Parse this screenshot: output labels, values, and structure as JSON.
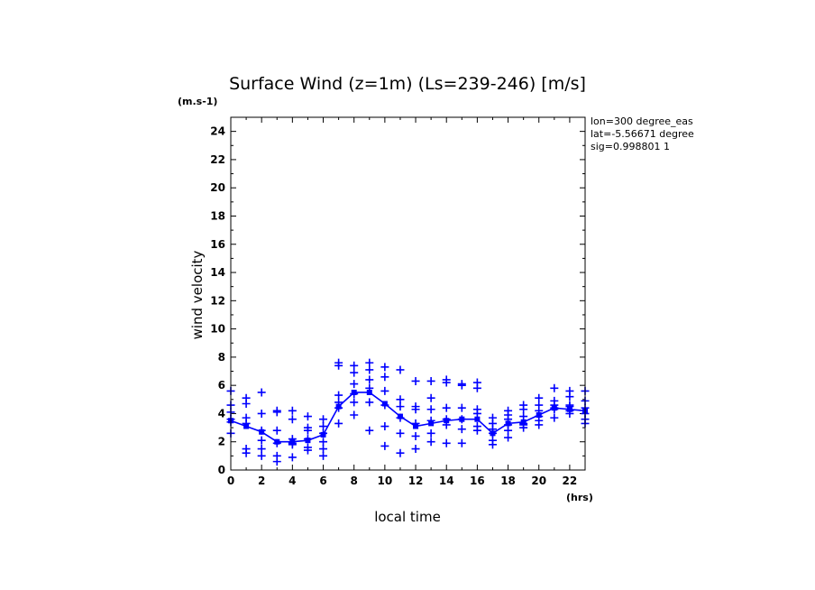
{
  "chart_data": {
    "type": "scatter",
    "title": "Surface Wind (z=1m) (Ls=239-246) [m/s]",
    "ylabel": "wind velocity",
    "yunit": "(m.s-1)",
    "xlabel": "local time",
    "xunit": "(hrs)",
    "info": [
      "lon=300 degree_eas",
      "lat=-5.56671 degree",
      "sig=0.998801 1"
    ],
    "xlim": [
      0,
      23
    ],
    "ylim": [
      0,
      25
    ],
    "xticks": [
      0,
      2,
      4,
      6,
      8,
      10,
      12,
      14,
      16,
      18,
      20,
      22
    ],
    "yticks": [
      0,
      2,
      4,
      6,
      8,
      10,
      12,
      14,
      16,
      18,
      20,
      22,
      24
    ],
    "color": "#0000ff",
    "mean_line": {
      "x": [
        0,
        1,
        2,
        3,
        4,
        5,
        6,
        7,
        8,
        9,
        10,
        11,
        12,
        13,
        14,
        15,
        16,
        17,
        18,
        19,
        20,
        21,
        22,
        23
      ],
      "y": [
        3.5,
        3.1,
        2.7,
        2.0,
        2.0,
        2.1,
        2.5,
        4.5,
        5.5,
        5.5,
        4.7,
        3.8,
        3.1,
        3.3,
        3.5,
        3.6,
        3.6,
        2.6,
        3.3,
        3.4,
        3.9,
        4.4,
        4.3,
        4.2
      ]
    },
    "samples": [
      {
        "x": 0,
        "y": [
          5.6,
          4.6,
          4.1,
          3.6,
          2.6,
          3.4
        ]
      },
      {
        "x": 1,
        "y": [
          5.1,
          4.7,
          3.7,
          3.3,
          1.5,
          1.2
        ]
      },
      {
        "x": 2,
        "y": [
          5.5,
          4.0,
          2.8,
          2.1,
          1.5,
          1.0
        ]
      },
      {
        "x": 3,
        "y": [
          4.2,
          4.1,
          2.8,
          1.9,
          1.0,
          0.6
        ]
      },
      {
        "x": 4,
        "y": [
          4.2,
          3.6,
          2.2,
          1.9,
          1.8,
          0.9
        ]
      },
      {
        "x": 5,
        "y": [
          3.8,
          3.0,
          2.2,
          1.6,
          2.8,
          1.4
        ]
      },
      {
        "x": 6,
        "y": [
          3.6,
          3.1,
          2.6,
          2.0,
          1.5,
          1.0
        ]
      },
      {
        "x": 7,
        "y": [
          7.6,
          7.4,
          5.3,
          4.8,
          4.4,
          3.3
        ]
      },
      {
        "x": 8,
        "y": [
          7.4,
          6.9,
          6.1,
          5.4,
          4.8,
          3.9
        ]
      },
      {
        "x": 9,
        "y": [
          7.6,
          7.1,
          6.4,
          5.8,
          4.8,
          2.8
        ]
      },
      {
        "x": 10,
        "y": [
          7.3,
          6.6,
          5.6,
          4.6,
          3.1,
          1.7
        ]
      },
      {
        "x": 11,
        "y": [
          7.1,
          5.0,
          4.5,
          3.7,
          2.6,
          1.2
        ]
      },
      {
        "x": 12,
        "y": [
          6.3,
          4.5,
          4.3,
          3.3,
          2.4,
          1.5
        ]
      },
      {
        "x": 13,
        "y": [
          6.3,
          5.1,
          4.3,
          3.5,
          2.6,
          2.0
        ]
      },
      {
        "x": 14,
        "y": [
          6.4,
          6.2,
          4.4,
          3.6,
          3.2,
          1.9
        ]
      },
      {
        "x": 15,
        "y": [
          6.1,
          6.0,
          4.4,
          3.6,
          2.9,
          1.9
        ]
      },
      {
        "x": 16,
        "y": [
          6.2,
          5.8,
          4.3,
          4.0,
          3.1,
          2.8
        ]
      },
      {
        "x": 17,
        "y": [
          3.7,
          3.3,
          2.9,
          2.6,
          2.1,
          1.8
        ]
      },
      {
        "x": 18,
        "y": [
          4.2,
          3.9,
          3.6,
          3.2,
          2.8,
          2.3
        ]
      },
      {
        "x": 19,
        "y": [
          4.6,
          4.3,
          3.8,
          3.2,
          3.0,
          3.3
        ]
      },
      {
        "x": 20,
        "y": [
          5.1,
          4.6,
          4.2,
          3.8,
          3.5,
          3.2
        ]
      },
      {
        "x": 21,
        "y": [
          5.8,
          4.9,
          4.6,
          4.3,
          4.4,
          3.7
        ]
      },
      {
        "x": 22,
        "y": [
          5.6,
          5.2,
          4.5,
          4.2,
          4.0,
          4.6
        ]
      },
      {
        "x": 23,
        "y": [
          5.6,
          4.9,
          4.4,
          4.0,
          3.6,
          3.3
        ]
      }
    ]
  }
}
